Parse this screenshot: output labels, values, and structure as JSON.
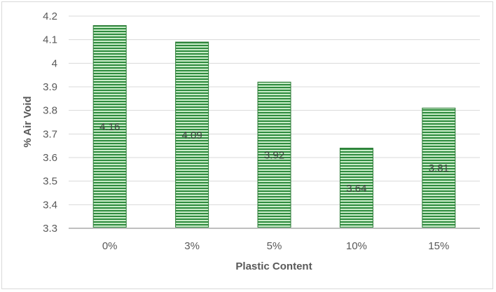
{
  "chart_data": {
    "type": "bar",
    "title": "",
    "xlabel": "Plastic Content",
    "ylabel": "% Air Void",
    "categories": [
      "0%",
      "3%",
      "5%",
      "10%",
      "15%"
    ],
    "values": [
      4.16,
      4.09,
      3.92,
      3.64,
      3.81
    ],
    "data_labels": [
      "4.16",
      "4.09",
      "3.92",
      "3.64",
      "3.81"
    ],
    "ylim": [
      3.3,
      4.2
    ],
    "yticks": [
      "3.3",
      "3.4",
      "3.5",
      "3.6",
      "3.7",
      "3.8",
      "3.9",
      "4",
      "4.1",
      "4.2"
    ],
    "grid": "horizontal",
    "legend": "none",
    "colors": {
      "bar_dark": "#2e8b3e",
      "bar_light": "#c9ecc8",
      "bar_edge": "#2b7a35",
      "grid": "#d9d9d9",
      "axis": "#bfbfbf"
    }
  }
}
